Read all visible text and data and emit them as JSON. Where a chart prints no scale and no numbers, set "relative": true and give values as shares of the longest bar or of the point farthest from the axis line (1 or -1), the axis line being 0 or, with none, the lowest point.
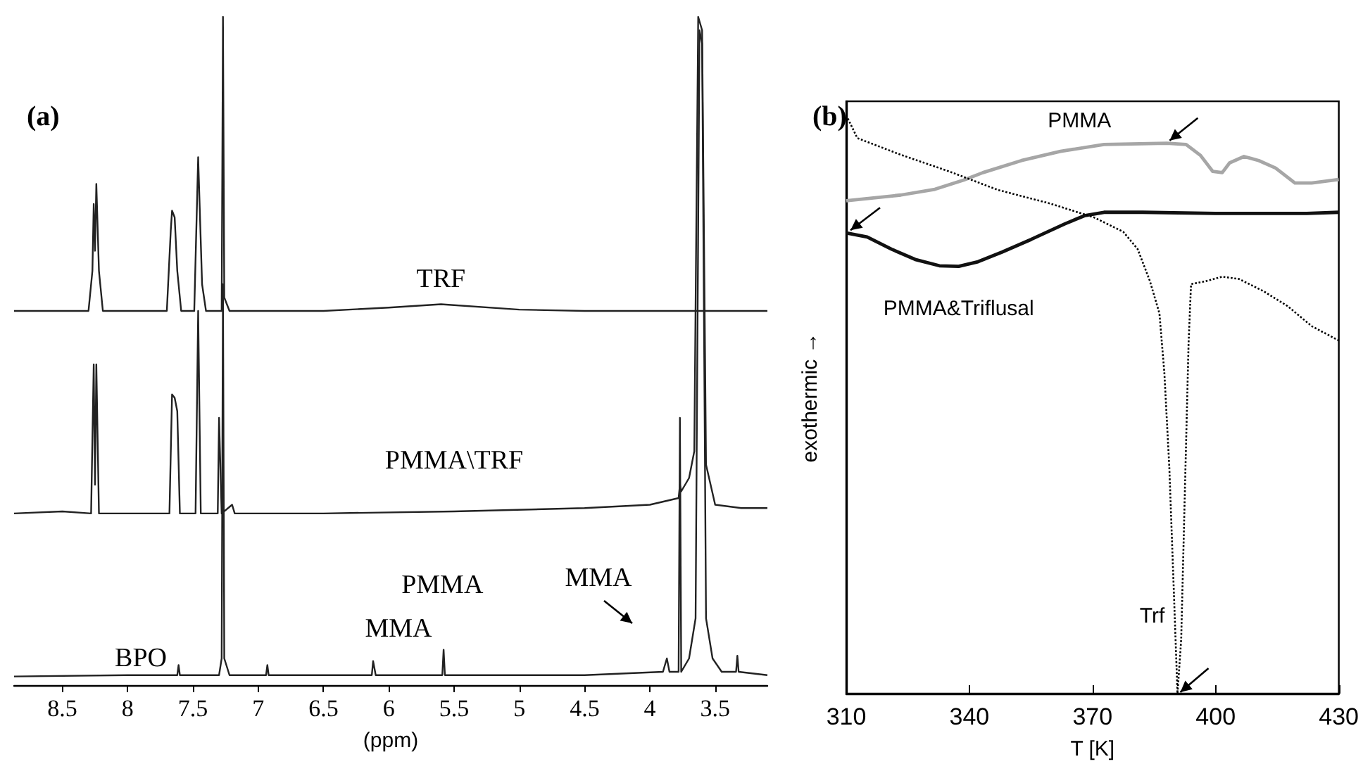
{
  "chart_data": [
    {
      "type": "line",
      "title": "(a)",
      "xlabel": "(ppm)",
      "relative": true,
      "xlim": [
        8.87,
        3.1
      ],
      "xticks": [
        8.5,
        8.0,
        7.5,
        7.0,
        6.5,
        6.0,
        5.5,
        5.0,
        4.5,
        4.0,
        3.5
      ],
      "grid": false,
      "legend": false,
      "marker": "none",
      "line_style": "solid",
      "series": [
        {
          "name": "TRF",
          "color": "#222222",
          "x": [
            8.87,
            8.3,
            8.27,
            8.26,
            8.25,
            8.24,
            8.22,
            8.19,
            7.7,
            7.67,
            7.66,
            7.64,
            7.62,
            7.59,
            7.49,
            7.46,
            7.43,
            7.4,
            7.28,
            7.27,
            7.26,
            7.22,
            6.5,
            6.0,
            5.6,
            5.0,
            4.5,
            3.7,
            3.1
          ],
          "values": [
            0.56,
            0.56,
            0.62,
            0.72,
            0.65,
            0.75,
            0.62,
            0.56,
            0.56,
            0.68,
            0.71,
            0.7,
            0.62,
            0.56,
            0.56,
            0.79,
            0.6,
            0.56,
            0.56,
            1.0,
            0.58,
            0.56,
            0.56,
            0.565,
            0.57,
            0.562,
            0.56,
            0.56,
            0.56
          ]
        },
        {
          "name": "PMMA\\TRF",
          "color": "#222222",
          "x": [
            8.87,
            8.5,
            8.28,
            8.26,
            8.25,
            8.24,
            8.22,
            7.68,
            7.66,
            7.64,
            7.62,
            7.6,
            7.48,
            7.46,
            7.44,
            7.31,
            7.3,
            7.28,
            7.2,
            7.18,
            6.5,
            5.5,
            4.5,
            4.0,
            3.78,
            3.77,
            3.76,
            3.7,
            3.66,
            3.63,
            3.6,
            3.57,
            3.5,
            3.3,
            3.1
          ],
          "values": [
            0.257,
            0.26,
            0.257,
            0.48,
            0.3,
            0.48,
            0.257,
            0.257,
            0.435,
            0.43,
            0.41,
            0.257,
            0.257,
            0.56,
            0.257,
            0.257,
            0.4,
            0.257,
            0.27,
            0.257,
            0.257,
            0.26,
            0.265,
            0.27,
            0.28,
            0.3,
            0.29,
            0.31,
            0.35,
            1.0,
            0.98,
            0.33,
            0.27,
            0.265,
            0.265
          ]
        },
        {
          "name": "PMMA",
          "color": "#222222",
          "x": [
            8.87,
            8.0,
            7.62,
            7.61,
            7.6,
            7.3,
            7.28,
            7.27,
            7.26,
            7.22,
            6.94,
            6.93,
            6.92,
            6.13,
            6.12,
            6.1,
            5.59,
            5.58,
            5.57,
            4.5,
            3.9,
            3.87,
            3.85,
            3.78,
            3.77,
            3.76,
            3.7,
            3.65,
            3.62,
            3.6,
            3.57,
            3.52,
            3.45,
            3.34,
            3.33,
            3.32,
            3.1
          ],
          "values": [
            0.013,
            0.015,
            0.015,
            0.03,
            0.015,
            0.015,
            0.04,
            0.6,
            0.04,
            0.015,
            0.015,
            0.03,
            0.015,
            0.015,
            0.036,
            0.015,
            0.015,
            0.053,
            0.015,
            0.015,
            0.02,
            0.04,
            0.02,
            0.02,
            0.4,
            0.02,
            0.04,
            0.1,
            0.98,
            0.96,
            0.1,
            0.04,
            0.02,
            0.02,
            0.044,
            0.02,
            0.015
          ]
        }
      ],
      "annotations": [
        "BPO",
        "MMA",
        "MMA"
      ]
    },
    {
      "type": "line",
      "title": "(b)",
      "xlabel": "T [K]",
      "ylabel": "exothermic →",
      "relative": true,
      "xlim": [
        310,
        430
      ],
      "xticks": [
        310,
        340,
        370,
        400,
        430
      ],
      "grid": false,
      "legend": false,
      "marker": "none",
      "series": [
        {
          "name": "PMMA",
          "color": "#a6a6a6",
          "line_style": "solid",
          "x": [
            310,
            323.3,
            331.6,
            338.6,
            343.3,
            352.7,
            362.2,
            372.8,
            388.1,
            392.8,
            396.3,
            399.3,
            401.6,
            403.4,
            406.9,
            410.5,
            414.6,
            419.3,
            423.4,
            430
          ],
          "values": [
            0.857,
            0.867,
            0.877,
            0.893,
            0.906,
            0.927,
            0.943,
            0.955,
            0.957,
            0.955,
            0.936,
            0.908,
            0.906,
            0.923,
            0.934,
            0.927,
            0.914,
            0.888,
            0.888,
            0.894
          ]
        },
        {
          "name": "PMMA&Triflusal",
          "color": "#111111",
          "line_style": "solid",
          "x": [
            310,
            315.1,
            321,
            326.8,
            332.7,
            337.4,
            342.1,
            348,
            355.1,
            363.3,
            368,
            372.8,
            382.2,
            399.9,
            411.6,
            422.2,
            430
          ],
          "values": [
            0.801,
            0.794,
            0.773,
            0.755,
            0.744,
            0.743,
            0.751,
            0.768,
            0.79,
            0.817,
            0.831,
            0.837,
            0.837,
            0.835,
            0.835,
            0.835,
            0.837
          ]
        },
        {
          "name": "Trf",
          "color": "#000000",
          "line_style": "dotted",
          "x": [
            310.4,
            312.7,
            323.3,
            335.1,
            346.9,
            359.8,
            370.4,
            377.5,
            381,
            384,
            386.3,
            387.5,
            388.7,
            389.8,
            390.7,
            391.6,
            392.5,
            393.4,
            394,
            397.5,
            401.6,
            405.7,
            411.6,
            417.5,
            423.4,
            430
          ],
          "values": [
            1.0,
            0.966,
            0.937,
            0.908,
            0.876,
            0.852,
            0.828,
            0.803,
            0.773,
            0.717,
            0.661,
            0.558,
            0.395,
            0.18,
            0.0,
            0.094,
            0.352,
            0.609,
            0.712,
            0.717,
            0.725,
            0.721,
            0.7,
            0.674,
            0.639,
            0.614
          ]
        }
      ]
    }
  ]
}
